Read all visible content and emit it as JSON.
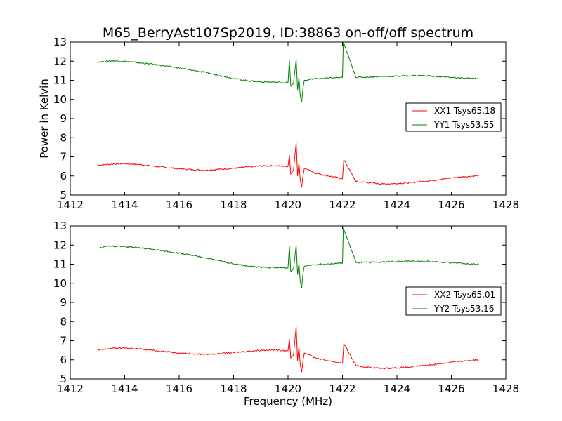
{
  "figure": {
    "title": "M65_BerryAst107Sp2019, ID:38863 on-off/off spectrum",
    "xlabel": "Frequency (MHz)",
    "ylabel": "Power in Kelvin"
  },
  "colors": {
    "xx": "#ff0000",
    "yy": "#008000"
  },
  "chart_data": [
    {
      "type": "line",
      "title": "M65_BerryAst107Sp2019, ID:38863 on-off/off spectrum",
      "xlabel": "",
      "ylabel": "Power in Kelvin",
      "xlim": [
        1412,
        1428
      ],
      "ylim": [
        5,
        13
      ],
      "xticks": [
        "1412",
        "1414",
        "1416",
        "1418",
        "1420",
        "1422",
        "1424",
        "1426",
        "1428"
      ],
      "yticks": [
        "5",
        "6",
        "7",
        "8",
        "9",
        "10",
        "11",
        "12",
        "13"
      ],
      "legend_position": "right",
      "series": [
        {
          "name": "XX1 Tsys65.18",
          "color": "#ff0000",
          "x": [
            1413.0,
            1413.5,
            1414.0,
            1414.5,
            1415.0,
            1415.5,
            1416.0,
            1416.5,
            1417.0,
            1417.5,
            1418.0,
            1418.5,
            1419.0,
            1419.5,
            1420.0,
            1420.05,
            1420.1,
            1420.2,
            1420.3,
            1420.35,
            1420.4,
            1420.45,
            1420.5,
            1420.55,
            1420.6,
            1420.7,
            1420.8,
            1421.0,
            1421.5,
            1422.0,
            1422.05,
            1422.5,
            1423.0,
            1423.5,
            1424.0,
            1424.5,
            1425.0,
            1425.5,
            1426.0,
            1426.5,
            1427.0
          ],
          "y": [
            6.55,
            6.62,
            6.65,
            6.6,
            6.52,
            6.45,
            6.38,
            6.33,
            6.3,
            6.35,
            6.4,
            6.47,
            6.52,
            6.53,
            6.5,
            7.1,
            6.1,
            6.3,
            7.75,
            6.0,
            6.7,
            5.8,
            5.4,
            6.0,
            6.4,
            6.35,
            6.3,
            6.15,
            6.0,
            5.85,
            6.85,
            5.7,
            5.65,
            5.58,
            5.6,
            5.65,
            5.72,
            5.8,
            5.9,
            5.96,
            6.02
          ]
        },
        {
          "name": "YY1 Tsys53.55",
          "color": "#008000",
          "x": [
            1413.0,
            1413.5,
            1414.0,
            1414.5,
            1415.0,
            1415.5,
            1416.0,
            1416.5,
            1417.0,
            1417.5,
            1418.0,
            1418.5,
            1419.0,
            1419.5,
            1420.0,
            1420.05,
            1420.1,
            1420.2,
            1420.3,
            1420.35,
            1420.4,
            1420.45,
            1420.5,
            1420.55,
            1420.6,
            1420.7,
            1420.8,
            1421.0,
            1421.5,
            1422.0,
            1422.03,
            1422.5,
            1423.0,
            1423.5,
            1424.0,
            1424.5,
            1425.0,
            1425.5,
            1426.0,
            1426.5,
            1427.0
          ],
          "y": [
            11.95,
            12.02,
            12.0,
            11.92,
            11.85,
            11.75,
            11.65,
            11.52,
            11.4,
            11.25,
            11.1,
            10.98,
            10.92,
            10.9,
            10.88,
            12.05,
            10.7,
            10.85,
            12.1,
            10.5,
            11.15,
            10.2,
            9.85,
            10.6,
            11.0,
            11.0,
            11.05,
            11.08,
            11.12,
            11.15,
            13.0,
            11.15,
            11.18,
            11.2,
            11.22,
            11.24,
            11.24,
            11.2,
            11.15,
            11.1,
            11.1
          ]
        }
      ]
    },
    {
      "type": "line",
      "title": "",
      "xlabel": "Frequency (MHz)",
      "ylabel": "",
      "xlim": [
        1412,
        1428
      ],
      "ylim": [
        5,
        13
      ],
      "xticks": [
        "1412",
        "1414",
        "1416",
        "1418",
        "1420",
        "1422",
        "1424",
        "1426",
        "1428"
      ],
      "yticks": [
        "5",
        "6",
        "7",
        "8",
        "9",
        "10",
        "11",
        "12",
        "13"
      ],
      "legend_position": "right",
      "series": [
        {
          "name": "XX2 Tsys65.01",
          "color": "#ff0000",
          "x": [
            1413.0,
            1413.5,
            1414.0,
            1414.5,
            1415.0,
            1415.5,
            1416.0,
            1416.5,
            1417.0,
            1417.5,
            1418.0,
            1418.5,
            1419.0,
            1419.5,
            1420.0,
            1420.05,
            1420.1,
            1420.2,
            1420.3,
            1420.35,
            1420.4,
            1420.45,
            1420.5,
            1420.55,
            1420.6,
            1420.7,
            1420.8,
            1421.0,
            1421.5,
            1422.0,
            1422.05,
            1422.5,
            1423.0,
            1423.5,
            1424.0,
            1424.5,
            1425.0,
            1425.5,
            1426.0,
            1426.5,
            1427.0
          ],
          "y": [
            6.5,
            6.6,
            6.62,
            6.58,
            6.5,
            6.43,
            6.36,
            6.31,
            6.28,
            6.33,
            6.38,
            6.44,
            6.5,
            6.52,
            6.48,
            7.1,
            6.1,
            6.25,
            7.75,
            5.95,
            6.7,
            5.75,
            5.35,
            5.95,
            6.35,
            6.3,
            6.25,
            6.1,
            5.95,
            5.82,
            6.85,
            5.68,
            5.6,
            5.55,
            5.58,
            5.62,
            5.7,
            5.78,
            5.88,
            5.95,
            6.0
          ]
        },
        {
          "name": "YY2 Tsys53.16",
          "color": "#008000",
          "x": [
            1413.0,
            1413.5,
            1414.0,
            1414.5,
            1415.0,
            1415.5,
            1416.0,
            1416.5,
            1417.0,
            1417.5,
            1418.0,
            1418.5,
            1419.0,
            1419.5,
            1420.0,
            1420.05,
            1420.1,
            1420.2,
            1420.3,
            1420.35,
            1420.4,
            1420.45,
            1420.5,
            1420.55,
            1420.6,
            1420.7,
            1420.8,
            1421.0,
            1421.5,
            1422.0,
            1422.03,
            1422.5,
            1423.0,
            1423.5,
            1424.0,
            1424.5,
            1425.0,
            1425.5,
            1426.0,
            1426.5,
            1427.0
          ],
          "y": [
            11.85,
            11.95,
            11.92,
            11.85,
            11.78,
            11.68,
            11.58,
            11.45,
            11.32,
            11.18,
            11.02,
            10.9,
            10.84,
            10.82,
            10.8,
            11.95,
            10.6,
            10.75,
            12.0,
            10.45,
            11.05,
            10.1,
            9.75,
            10.5,
            10.9,
            10.92,
            10.95,
            10.98,
            11.02,
            11.05,
            12.9,
            11.08,
            11.1,
            11.12,
            11.14,
            11.15,
            11.15,
            11.12,
            11.08,
            11.02,
            11.0
          ]
        }
      ]
    }
  ]
}
